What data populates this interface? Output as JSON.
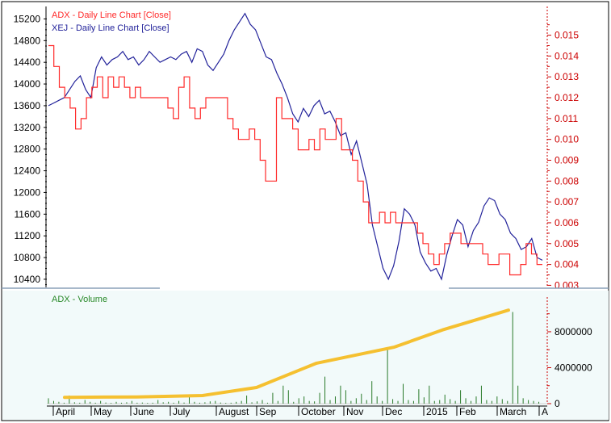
{
  "chart_data": [
    {
      "type": "line",
      "legend": [
        "ADX - Daily Line Chart [Close]",
        "XEJ - Daily Line Chart [Close]"
      ],
      "legend_colors": [
        "#ff2a2a",
        "#22229a"
      ],
      "left_axis": {
        "ticks": [
          15200,
          14800,
          14400,
          14000,
          13600,
          13200,
          12800,
          12400,
          12000,
          11600,
          11200,
          10800,
          10400
        ],
        "range": [
          10250,
          15400
        ],
        "color": "#000000"
      },
      "right_axis": {
        "ticks": [
          "0.015",
          "0.014",
          "0.013",
          "0.012",
          "0.011",
          "0.010",
          "0.009",
          "0.008",
          "0.007",
          "0.006",
          "0.005",
          "0.004",
          "0.003"
        ],
        "range": [
          0.0029,
          0.0163
        ],
        "color": "#cc0000"
      },
      "months": [
        "April",
        "May",
        "June",
        "July",
        "August",
        "Sep",
        "October",
        "Nov",
        "Dec",
        "2015",
        "Feb",
        "March",
        "A"
      ],
      "series": [
        {
          "name": "XEJ - Daily Line Chart [Close]",
          "axis": "left",
          "color": "#22229a",
          "points": [
            [
              0,
              13600
            ],
            [
              1,
              13650
            ],
            [
              2,
              13700
            ],
            [
              3,
              13750
            ],
            [
              4,
              13900
            ],
            [
              5,
              14050
            ],
            [
              6,
              14150
            ],
            [
              7,
              13900
            ],
            [
              8,
              13750
            ],
            [
              9,
              14300
            ],
            [
              10,
              14500
            ],
            [
              11,
              14350
            ],
            [
              12,
              14450
            ],
            [
              13,
              14500
            ],
            [
              14,
              14600
            ],
            [
              15,
              14450
            ],
            [
              16,
              14500
            ],
            [
              17,
              14350
            ],
            [
              18,
              14450
            ],
            [
              19,
              14600
            ],
            [
              20,
              14500
            ],
            [
              21,
              14400
            ],
            [
              22,
              14450
            ],
            [
              23,
              14500
            ],
            [
              24,
              14450
            ],
            [
              25,
              14550
            ],
            [
              26,
              14600
            ],
            [
              27,
              14400
            ],
            [
              28,
              14650
            ],
            [
              29,
              14600
            ],
            [
              30,
              14350
            ],
            [
              31,
              14250
            ],
            [
              32,
              14400
            ],
            [
              33,
              14550
            ],
            [
              34,
              14800
            ],
            [
              35,
              15000
            ],
            [
              36,
              15150
            ],
            [
              37,
              15300
            ],
            [
              38,
              15100
            ],
            [
              39,
              15000
            ],
            [
              40,
              14750
            ],
            [
              41,
              14500
            ],
            [
              42,
              14450
            ],
            [
              43,
              14200
            ],
            [
              44,
              14000
            ],
            [
              45,
              13750
            ],
            [
              46,
              13450
            ],
            [
              47,
              13300
            ],
            [
              48,
              13550
            ],
            [
              49,
              13400
            ],
            [
              50,
              13600
            ],
            [
              51,
              13700
            ],
            [
              52,
              13450
            ],
            [
              53,
              13500
            ],
            [
              54,
              13300
            ],
            [
              55,
              13050
            ],
            [
              56,
              13100
            ],
            [
              57,
              12700
            ],
            [
              58,
              12950
            ],
            [
              59,
              12550
            ],
            [
              60,
              12150
            ],
            [
              61,
              11400
            ],
            [
              62,
              11000
            ],
            [
              63,
              10600
            ],
            [
              64,
              10400
            ],
            [
              65,
              10650
            ],
            [
              66,
              11100
            ],
            [
              67,
              11700
            ],
            [
              68,
              11600
            ],
            [
              69,
              11400
            ],
            [
              70,
              10900
            ],
            [
              71,
              10700
            ],
            [
              72,
              10550
            ],
            [
              73,
              10600
            ],
            [
              74,
              10400
            ],
            [
              75,
              10850
            ],
            [
              76,
              11200
            ],
            [
              77,
              11500
            ],
            [
              78,
              11400
            ],
            [
              79,
              11000
            ],
            [
              80,
              11300
            ],
            [
              81,
              11450
            ],
            [
              82,
              11750
            ],
            [
              83,
              11900
            ],
            [
              84,
              11850
            ],
            [
              85,
              11600
            ],
            [
              86,
              11500
            ],
            [
              87,
              11250
            ],
            [
              88,
              11150
            ],
            [
              89,
              10950
            ],
            [
              90,
              11000
            ],
            [
              91,
              11150
            ],
            [
              92,
              10800
            ],
            [
              93,
              10750
            ]
          ]
        },
        {
          "name": "ADX - Daily Line Chart [Close]",
          "axis": "right",
          "color": "#ff2a2a",
          "points": [
            [
              0,
              0.0145
            ],
            [
              1,
              0.0135
            ],
            [
              2,
              0.0125
            ],
            [
              3,
              0.012
            ],
            [
              4,
              0.0115
            ],
            [
              5,
              0.0105
            ],
            [
              6,
              0.011
            ],
            [
              7,
              0.012
            ],
            [
              8,
              0.0125
            ],
            [
              9,
              0.013
            ],
            [
              10,
              0.012
            ],
            [
              11,
              0.013
            ],
            [
              12,
              0.0125
            ],
            [
              13,
              0.013
            ],
            [
              14,
              0.0125
            ],
            [
              15,
              0.012
            ],
            [
              16,
              0.0125
            ],
            [
              17,
              0.012
            ],
            [
              18,
              0.012
            ],
            [
              19,
              0.012
            ],
            [
              20,
              0.012
            ],
            [
              21,
              0.012
            ],
            [
              22,
              0.0115
            ],
            [
              23,
              0.011
            ],
            [
              24,
              0.0125
            ],
            [
              25,
              0.013
            ],
            [
              26,
              0.0115
            ],
            [
              27,
              0.011
            ],
            [
              28,
              0.0115
            ],
            [
              29,
              0.012
            ],
            [
              30,
              0.012
            ],
            [
              31,
              0.012
            ],
            [
              32,
              0.012
            ],
            [
              33,
              0.011
            ],
            [
              34,
              0.0105
            ],
            [
              35,
              0.01
            ],
            [
              36,
              0.01
            ],
            [
              37,
              0.0105
            ],
            [
              38,
              0.01
            ],
            [
              39,
              0.009
            ],
            [
              40,
              0.008
            ],
            [
              41,
              0.008
            ],
            [
              42,
              0.012
            ],
            [
              43,
              0.011
            ],
            [
              44,
              0.011
            ],
            [
              45,
              0.0105
            ],
            [
              46,
              0.0095
            ],
            [
              47,
              0.0095
            ],
            [
              48,
              0.01
            ],
            [
              49,
              0.0095
            ],
            [
              50,
              0.0105
            ],
            [
              51,
              0.01
            ],
            [
              52,
              0.01
            ],
            [
              53,
              0.011
            ],
            [
              54,
              0.0095
            ],
            [
              55,
              0.0095
            ],
            [
              56,
              0.009
            ],
            [
              57,
              0.008
            ],
            [
              58,
              0.007
            ],
            [
              59,
              0.006
            ],
            [
              60,
              0.006
            ],
            [
              61,
              0.0065
            ],
            [
              62,
              0.006
            ],
            [
              63,
              0.0065
            ],
            [
              64,
              0.006
            ],
            [
              65,
              0.006
            ],
            [
              66,
              0.006
            ],
            [
              67,
              0.006
            ],
            [
              68,
              0.0055
            ],
            [
              69,
              0.005
            ],
            [
              70,
              0.0045
            ],
            [
              71,
              0.004
            ],
            [
              72,
              0.0045
            ],
            [
              73,
              0.005
            ],
            [
              74,
              0.0055
            ],
            [
              75,
              0.0055
            ],
            [
              76,
              0.005
            ],
            [
              77,
              0.005
            ],
            [
              78,
              0.005
            ],
            [
              79,
              0.005
            ],
            [
              80,
              0.0045
            ],
            [
              81,
              0.004
            ],
            [
              82,
              0.004
            ],
            [
              83,
              0.0045
            ],
            [
              84,
              0.0045
            ],
            [
              85,
              0.0035
            ],
            [
              86,
              0.0035
            ],
            [
              87,
              0.004
            ],
            [
              88,
              0.005
            ],
            [
              89,
              0.0045
            ],
            [
              90,
              0.004
            ],
            [
              91,
              0.004
            ]
          ]
        }
      ]
    },
    {
      "type": "bar",
      "legend": [
        "ADX - Volume"
      ],
      "legend_color": "#2a8a2a",
      "right_axis": {
        "ticks": [
          "8000000",
          "4000000",
          "0"
        ],
        "range": [
          0,
          11500000
        ],
        "color": "#cc0000"
      },
      "volume_series": {
        "name": "ADX - Volume",
        "color": "#2a7a2a",
        "values": [
          600000,
          300000,
          200000,
          100000,
          900000,
          150000,
          100000,
          400000,
          200000,
          100000,
          300000,
          120000,
          80000,
          200000,
          100000,
          150000,
          300000,
          100000,
          120000,
          80000,
          100000,
          400000,
          150000,
          200000,
          100000,
          300000,
          120000,
          800000,
          200000,
          100000,
          150000,
          250000,
          300000,
          120000,
          80000,
          100000,
          200000,
          300000,
          900000,
          150000,
          250000,
          400000,
          100000,
          1200000,
          300000,
          2000000,
          1500000,
          200000,
          600000,
          800000,
          300000,
          250000,
          1200000,
          3000000,
          400000,
          800000,
          2000000,
          1500000,
          300000,
          600000,
          1100000,
          400000,
          2500000,
          800000,
          300000,
          6000000,
          500000,
          300000,
          2200000,
          400000,
          300000,
          1600000,
          700000,
          2000000,
          300000,
          400000,
          1000000,
          500000,
          300000,
          1500000,
          600000,
          300000,
          800000,
          2000000,
          400000,
          300000,
          800000,
          500000,
          300000,
          10200000,
          2000000,
          600000,
          400000,
          300000,
          200000
        ]
      },
      "trend_series": {
        "name": "trend",
        "color": "#f5c030",
        "points": [
          [
            0,
            700000
          ],
          [
            0.12,
            750000
          ],
          [
            0.23,
            900000
          ],
          [
            0.32,
            1800000
          ],
          [
            0.42,
            4500000
          ],
          [
            0.55,
            6300000
          ],
          [
            0.63,
            8200000
          ],
          [
            0.74,
            10400000
          ]
        ]
      }
    }
  ]
}
